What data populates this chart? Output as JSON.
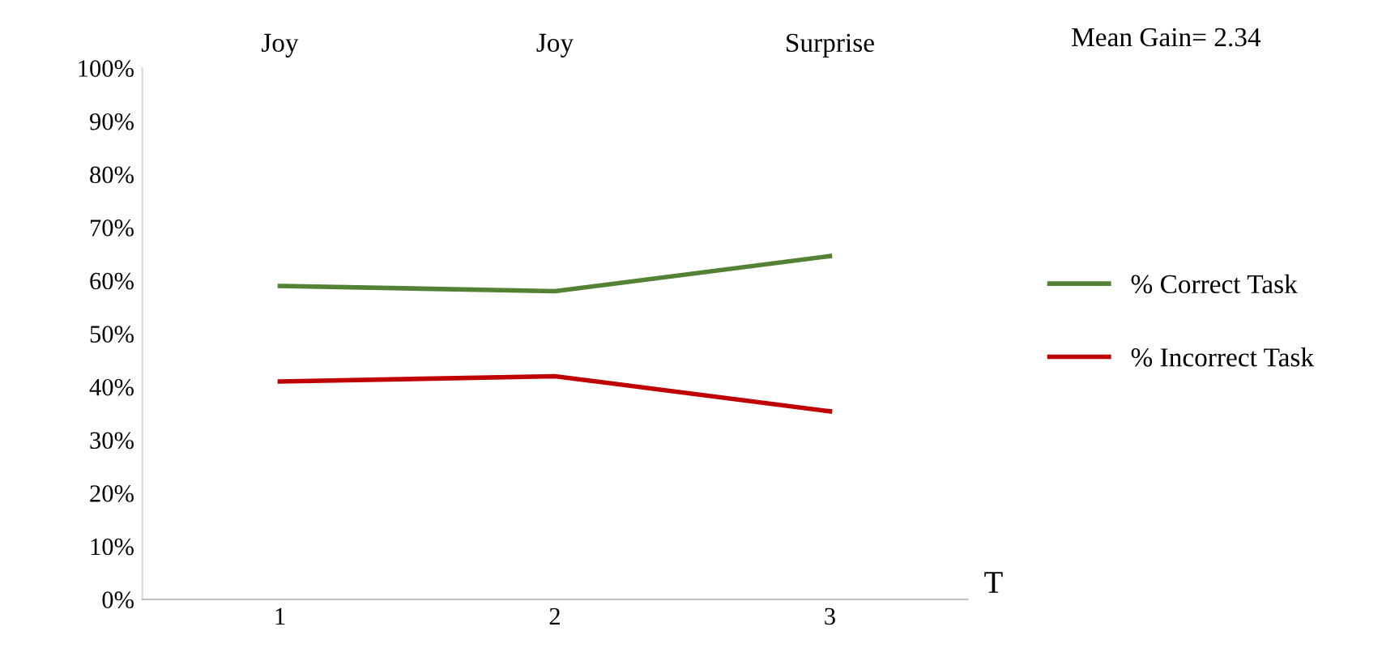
{
  "chart_data": {
    "type": "line",
    "categories": [
      "1",
      "2",
      "3"
    ],
    "xlabel": "T",
    "series": [
      {
        "name": "% Correct Task",
        "color": "#548235",
        "values": [
          59,
          58,
          64.6
        ]
      },
      {
        "name": "% Incorrect Task",
        "color": "#c00000",
        "values": [
          41,
          42,
          35.4
        ]
      }
    ],
    "ylim": [
      0,
      100
    ],
    "yticks": [
      {
        "value": 0,
        "label": "0%"
      },
      {
        "value": 10,
        "label": "10%"
      },
      {
        "value": 20,
        "label": "20%"
      },
      {
        "value": 30,
        "label": "30%"
      },
      {
        "value": 40,
        "label": "40%"
      },
      {
        "value": 50,
        "label": "50%"
      },
      {
        "value": 60,
        "label": "60%"
      },
      {
        "value": 70,
        "label": "70%"
      },
      {
        "value": 80,
        "label": "80%"
      },
      {
        "value": 90,
        "label": "90%"
      },
      {
        "value": 100,
        "label": "100%"
      }
    ],
    "annotations": [
      "Joy",
      "Joy",
      "Surprise",
      "Mean Gain= 2.34"
    ],
    "grid": false,
    "legend": "right",
    "marker": "none",
    "line_style": "solid"
  }
}
